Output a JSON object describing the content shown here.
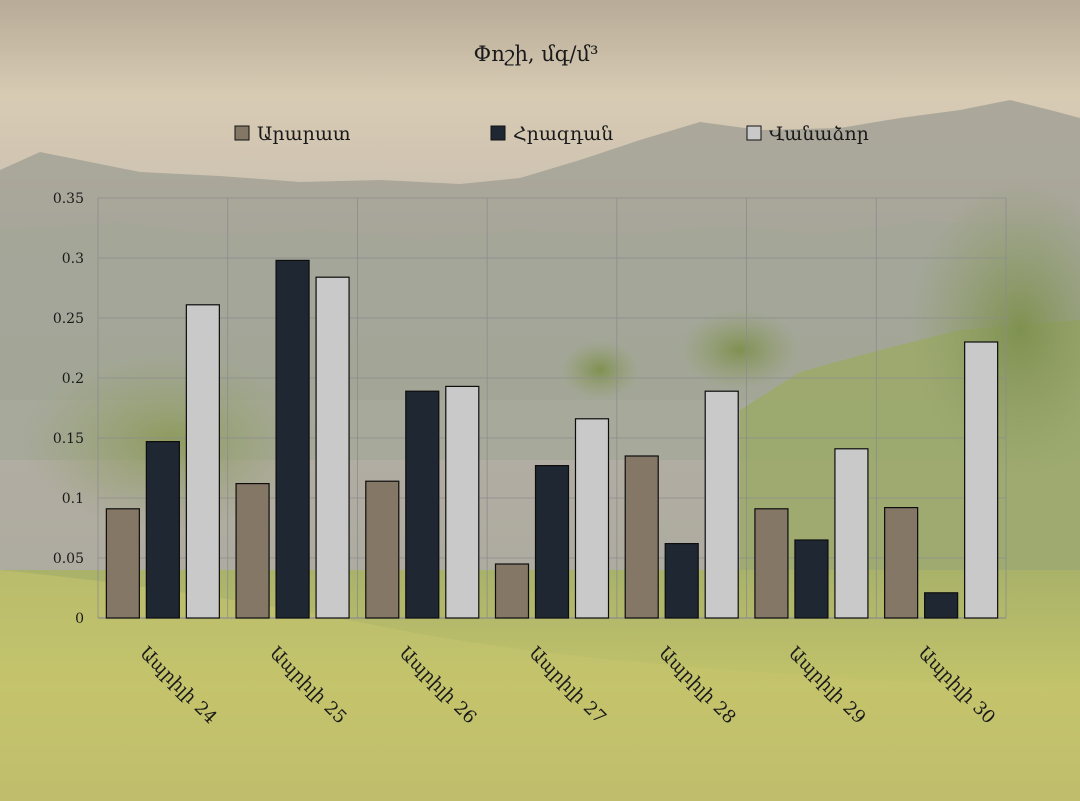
{
  "chart_data": {
    "type": "bar",
    "title": "Փոշի, մգ/մ³",
    "xlabel": "",
    "ylabel": "",
    "categories": [
      "Ապրիլի 24",
      "Ապրիլի 25",
      "Ապրիլի 26",
      "Ապրիլի 27",
      "Ապրիլի 28",
      "Ապրիլի 29",
      "Ապրիլի 30"
    ],
    "series": [
      {
        "name": "Արարատ",
        "color": "#857765",
        "values": [
          0.091,
          0.112,
          0.114,
          0.045,
          0.135,
          0.091,
          0.092
        ]
      },
      {
        "name": "Հրազդան",
        "color": "#1f2733",
        "values": [
          0.147,
          0.298,
          0.189,
          0.127,
          0.062,
          0.065,
          0.021
        ]
      },
      {
        "name": "Վանաձոր",
        "color": "#c9c9c9",
        "values": [
          0.261,
          0.284,
          0.193,
          0.166,
          0.189,
          0.141,
          0.23
        ]
      }
    ],
    "ylim": [
      0,
      0.35
    ],
    "yticks": [
      "0",
      "0.05",
      "0.1",
      "0.15",
      "0.2",
      "0.25",
      "0.3",
      "0.35"
    ],
    "grid": true,
    "legend_position": "top"
  }
}
